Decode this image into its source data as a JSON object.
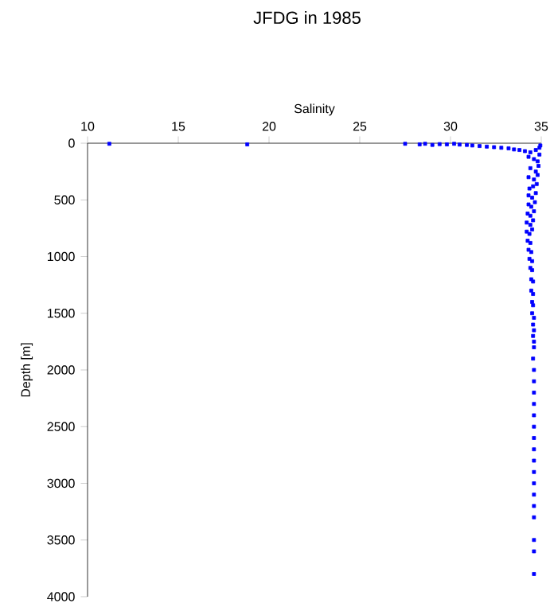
{
  "chart_data": {
    "type": "scatter",
    "title": "JFDG in 1985",
    "xlabel": "Salinity",
    "ylabel": "Depth [m]",
    "xlim": [
      10,
      35
    ],
    "xticks": [
      10,
      15,
      20,
      25,
      30,
      35
    ],
    "ylim": [
      4000,
      0
    ],
    "yticks": [
      0,
      500,
      1000,
      1500,
      2000,
      2500,
      3000,
      3500,
      4000
    ],
    "marker": "square",
    "grid": false,
    "series": [
      {
        "color": "#0000ff",
        "x": [
          11.2,
          18.8,
          27.5,
          28.3,
          28.6,
          29.0,
          29.4,
          29.8,
          30.2,
          30.5,
          30.9,
          31.2,
          31.6,
          32.0,
          32.4,
          32.8,
          33.2,
          33.5,
          33.8,
          34.1,
          34.4,
          34.7,
          34.9,
          34.95,
          34.3,
          34.6,
          34.8,
          34.9,
          34.4,
          34.7,
          34.85,
          34.3,
          34.6,
          34.8,
          34.35,
          34.55,
          34.75,
          34.3,
          34.5,
          34.7,
          34.3,
          34.45,
          34.65,
          34.25,
          34.4,
          34.6,
          34.2,
          34.4,
          34.55,
          34.2,
          34.35,
          34.5,
          34.25,
          34.4,
          34.3,
          34.45,
          34.35,
          34.5,
          34.4,
          34.5,
          34.45,
          34.55,
          34.45,
          34.55,
          34.5,
          34.55,
          34.5,
          34.6,
          34.55,
          34.6,
          34.55,
          34.6,
          34.6,
          34.55,
          34.6,
          34.6,
          34.6,
          34.6,
          34.6,
          34.6,
          34.6,
          34.6,
          34.6,
          34.6,
          34.6,
          34.6,
          34.6,
          34.6,
          34.6,
          34.6,
          34.6
        ],
        "values": [
          5,
          10,
          5,
          10,
          5,
          15,
          8,
          10,
          5,
          12,
          15,
          20,
          25,
          30,
          35,
          40,
          45,
          55,
          60,
          70,
          80,
          60,
          40,
          20,
          120,
          140,
          160,
          100,
          220,
          250,
          200,
          300,
          320,
          280,
          400,
          380,
          360,
          460,
          480,
          440,
          540,
          560,
          520,
          620,
          640,
          600,
          700,
          720,
          680,
          780,
          800,
          760,
          860,
          880,
          940,
          960,
          1020,
          1040,
          1100,
          1120,
          1200,
          1220,
          1300,
          1330,
          1400,
          1430,
          1500,
          1540,
          1600,
          1650,
          1700,
          1750,
          1800,
          1900,
          2000,
          2100,
          2200,
          2300,
          2400,
          2500,
          2600,
          2700,
          2800,
          2900,
          3000,
          3100,
          3200,
          3300,
          3500,
          3600,
          3800
        ]
      }
    ]
  }
}
